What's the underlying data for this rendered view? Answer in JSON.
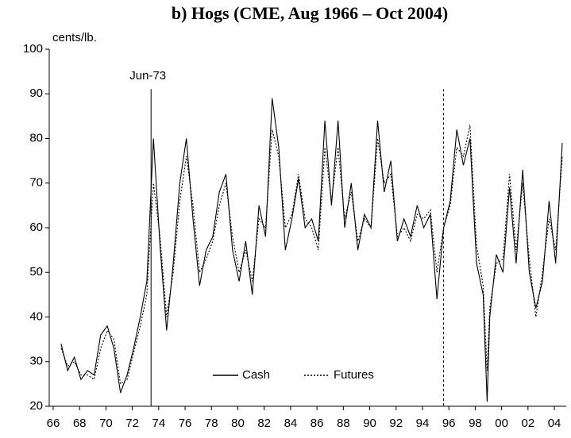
{
  "chart_data": {
    "type": "line",
    "title": "b) Hogs (CME, Aug 1966 – Oct 2004)",
    "y_label": "cents/lb.",
    "x": [
      1966.6,
      1967.1,
      1967.6,
      1968.1,
      1968.6,
      1969.1,
      1969.6,
      1970.1,
      1970.6,
      1971.1,
      1971.6,
      1972.1,
      1972.6,
      1973.1,
      1973.6,
      1974.1,
      1974.6,
      1975.1,
      1975.6,
      1976.1,
      1976.6,
      1977.1,
      1977.6,
      1978.1,
      1978.6,
      1979.1,
      1979.6,
      1980.1,
      1980.6,
      1981.1,
      1981.6,
      1982.1,
      1982.6,
      1983.1,
      1983.6,
      1984.1,
      1984.6,
      1985.1,
      1985.6,
      1986.1,
      1986.6,
      1987.1,
      1987.6,
      1988.1,
      1988.6,
      1989.1,
      1989.6,
      1990.1,
      1990.6,
      1991.1,
      1991.6,
      1992.1,
      1992.6,
      1993.1,
      1993.6,
      1994.1,
      1994.6,
      1995.1,
      1995.6,
      1996.1,
      1996.6,
      1997.1,
      1997.6,
      1998.1,
      1998.6,
      1998.9,
      1999.1,
      1999.6,
      2000.1,
      2000.6,
      2001.1,
      2001.6,
      2002.1,
      2002.6,
      2003.1,
      2003.6,
      2004.1,
      2004.6
    ],
    "series": [
      {
        "name": "Cash",
        "color": "#000000",
        "dash": "solid",
        "values": [
          34,
          28,
          31,
          26,
          28,
          27,
          36,
          38,
          33,
          23,
          27,
          33,
          40,
          48,
          80,
          56,
          37,
          52,
          70,
          80,
          62,
          47,
          55,
          58,
          68,
          72,
          55,
          48,
          57,
          45,
          65,
          58,
          89,
          78,
          55,
          62,
          71,
          60,
          62,
          57,
          84,
          65,
          84,
          60,
          70,
          55,
          63,
          60,
          84,
          68,
          75,
          57,
          62,
          58,
          65,
          60,
          63,
          44,
          60,
          66,
          82,
          74,
          80,
          52,
          45,
          21,
          40,
          54,
          50,
          69,
          52,
          73,
          50,
          42,
          48,
          66,
          52,
          79
        ]
      },
      {
        "name": "Futures",
        "color": "#000000",
        "dash": "dotted",
        "values": [
          33,
          29,
          30,
          27,
          27,
          26,
          33,
          37,
          35,
          25,
          26,
          32,
          38,
          45,
          70,
          58,
          40,
          50,
          66,
          76,
          65,
          50,
          53,
          57,
          65,
          70,
          58,
          50,
          55,
          48,
          62,
          60,
          82,
          76,
          60,
          63,
          72,
          62,
          60,
          55,
          78,
          66,
          78,
          62,
          68,
          57,
          62,
          60,
          80,
          70,
          72,
          58,
          60,
          57,
          63,
          62,
          64,
          50,
          60,
          65,
          78,
          76,
          83,
          56,
          47,
          28,
          42,
          52,
          53,
          72,
          55,
          70,
          53,
          40,
          50,
          62,
          55,
          76
        ]
      }
    ],
    "vlines": [
      {
        "x": 1973.42,
        "label": "Jun-73",
        "dash": "solid"
      },
      {
        "x": 1995.6,
        "dash": "dashed"
      }
    ],
    "xlim": [
      1965.7,
      2004.9
    ],
    "xticks": [
      {
        "value": 1966,
        "label": "66"
      },
      {
        "value": 1968,
        "label": "68"
      },
      {
        "value": 1970,
        "label": "70"
      },
      {
        "value": 1972,
        "label": "72"
      },
      {
        "value": 1974,
        "label": "74"
      },
      {
        "value": 1976,
        "label": "76"
      },
      {
        "value": 1978,
        "label": "78"
      },
      {
        "value": 1980,
        "label": "80"
      },
      {
        "value": 1982,
        "label": "82"
      },
      {
        "value": 1984,
        "label": "84"
      },
      {
        "value": 1986,
        "label": "86"
      },
      {
        "value": 1988,
        "label": "88"
      },
      {
        "value": 1990,
        "label": "90"
      },
      {
        "value": 1992,
        "label": "92"
      },
      {
        "value": 1994,
        "label": "94"
      },
      {
        "value": 1996,
        "label": "96"
      },
      {
        "value": 1998,
        "label": "98"
      },
      {
        "value": 2000,
        "label": "00"
      },
      {
        "value": 2002,
        "label": "02"
      },
      {
        "value": 2004,
        "label": "04"
      }
    ],
    "ylim": [
      20,
      100
    ],
    "yticks": [
      20,
      30,
      40,
      50,
      60,
      70,
      80,
      90,
      100
    ],
    "grid": false,
    "legend": "bottom"
  }
}
